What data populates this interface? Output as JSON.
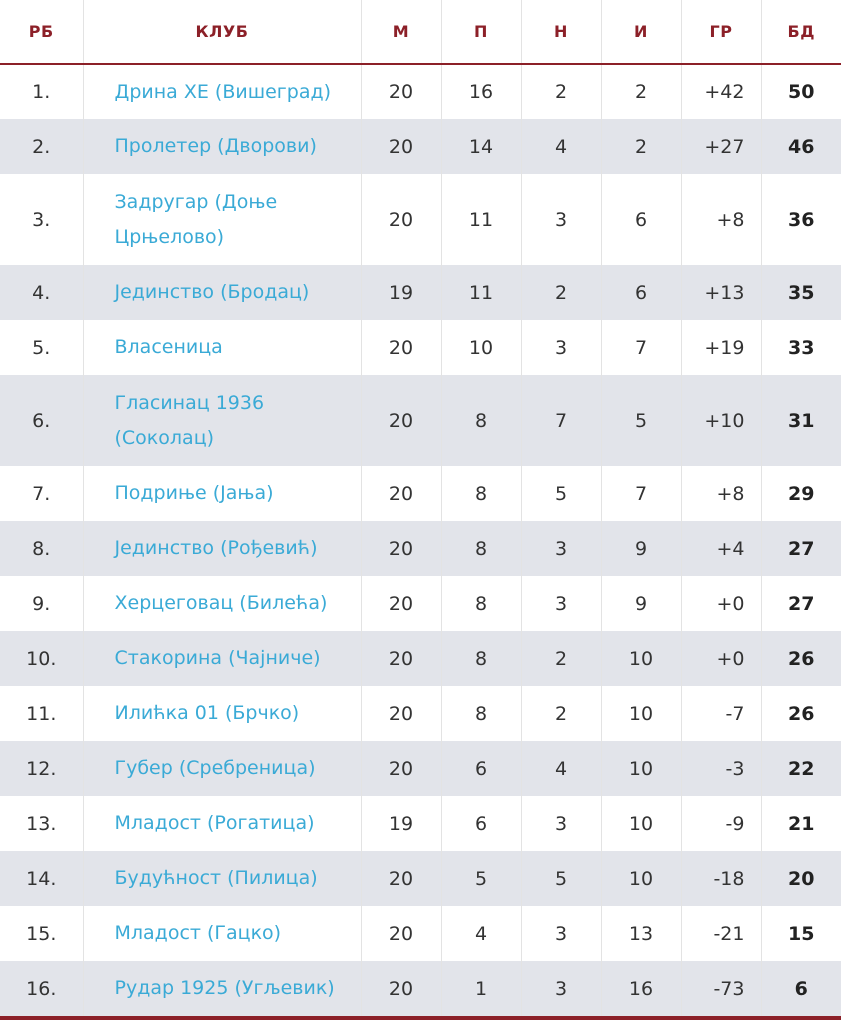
{
  "headers": [
    "РБ",
    "КЛУБ",
    "М",
    "П",
    "Н",
    "И",
    "ГР",
    "БД"
  ],
  "rows": [
    {
      "rank": "1.",
      "club": "Дрина ХЕ (Вишеград)",
      "played": "20",
      "won": "16",
      "drawn": "2",
      "lost": "2",
      "diff": "+42",
      "points": "50"
    },
    {
      "rank": "2.",
      "club": "Пролетер (Дворови)",
      "played": "20",
      "won": "14",
      "drawn": "4",
      "lost": "2",
      "diff": "+27",
      "points": "46"
    },
    {
      "rank": "3.",
      "club": "Задругар (Доње Црњелово)",
      "played": "20",
      "won": "11",
      "drawn": "3",
      "lost": "6",
      "diff": "+8",
      "points": "36"
    },
    {
      "rank": "4.",
      "club": "Јединство (Бродац)",
      "played": "19",
      "won": "11",
      "drawn": "2",
      "lost": "6",
      "diff": "+13",
      "points": "35"
    },
    {
      "rank": "5.",
      "club": "Власеница",
      "played": "20",
      "won": "10",
      "drawn": "3",
      "lost": "7",
      "diff": "+19",
      "points": "33"
    },
    {
      "rank": "6.",
      "club": "Гласинац 1936 (Соколац)",
      "played": "20",
      "won": "8",
      "drawn": "7",
      "lost": "5",
      "diff": "+10",
      "points": "31"
    },
    {
      "rank": "7.",
      "club": "Подриње (Јања)",
      "played": "20",
      "won": "8",
      "drawn": "5",
      "lost": "7",
      "diff": "+8",
      "points": "29"
    },
    {
      "rank": "8.",
      "club": "Јединство (Рођевић)",
      "played": "20",
      "won": "8",
      "drawn": "3",
      "lost": "9",
      "diff": "+4",
      "points": "27"
    },
    {
      "rank": "9.",
      "club": "Херцеговац (Билећа)",
      "played": "20",
      "won": "8",
      "drawn": "3",
      "lost": "9",
      "diff": "+0",
      "points": "27"
    },
    {
      "rank": "10.",
      "club": "Стакорина (Чајниче)",
      "played": "20",
      "won": "8",
      "drawn": "2",
      "lost": "10",
      "diff": "+0",
      "points": "26"
    },
    {
      "rank": "11.",
      "club": "Илићка 01 (Брчко)",
      "played": "20",
      "won": "8",
      "drawn": "2",
      "lost": "10",
      "diff": "-7",
      "points": "26"
    },
    {
      "rank": "12.",
      "club": "Губер (Сребреница)",
      "played": "20",
      "won": "6",
      "drawn": "4",
      "lost": "10",
      "diff": "-3",
      "points": "22"
    },
    {
      "rank": "13.",
      "club": "Младост (Рогатица)",
      "played": "19",
      "won": "6",
      "drawn": "3",
      "lost": "10",
      "diff": "-9",
      "points": "21"
    },
    {
      "rank": "14.",
      "club": "Будућност (Пилица)",
      "played": "20",
      "won": "5",
      "drawn": "5",
      "lost": "10",
      "diff": "-18",
      "points": "20"
    },
    {
      "rank": "15.",
      "club": "Младост (Гацко)",
      "played": "20",
      "won": "4",
      "drawn": "3",
      "lost": "13",
      "diff": "-21",
      "points": "15"
    },
    {
      "rank": "16.",
      "club": "Рудар 1925 (Угљевик)",
      "played": "20",
      "won": "1",
      "drawn": "3",
      "lost": "16",
      "diff": "-73",
      "points": "6"
    }
  ],
  "colors": {
    "header_text": "#8c2028",
    "club_link": "#3aaad6",
    "stripe": "#e2e4ea",
    "accent_bar": "#8c2028"
  }
}
